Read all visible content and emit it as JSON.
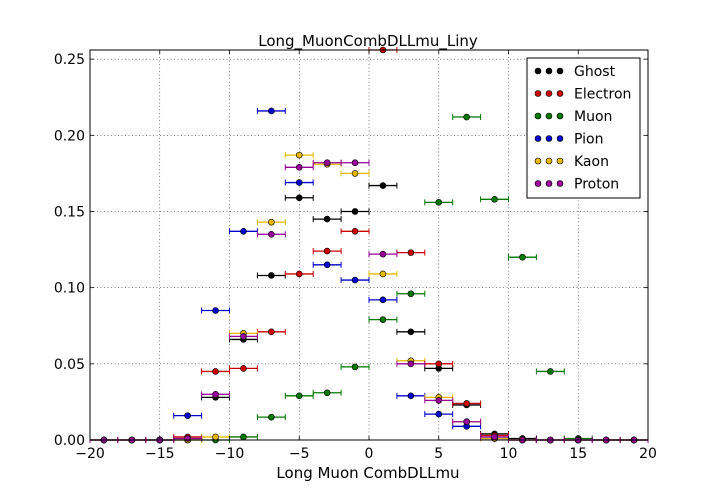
{
  "chart_data": {
    "type": "scatter",
    "title": "Long_MuonCombDLLmu_Liny",
    "xlabel": "Long Muon CombDLLmu",
    "ylabel": "",
    "xlim": [
      -20,
      20
    ],
    "ylim": [
      0,
      0.256
    ],
    "x_ticks": [
      "−20",
      "−15",
      "−10",
      "−5",
      "0",
      "5",
      "10",
      "15",
      "20"
    ],
    "y_ticks": [
      "0.00",
      "0.05",
      "0.10",
      "0.15",
      "0.20",
      "0.25"
    ],
    "grid": true,
    "legend_position": "top-right",
    "bin_half_width": 1,
    "series": [
      {
        "name": "Ghost",
        "color": "#000000",
        "x": [
          -19,
          -17,
          -15,
          -13,
          -11,
          -9,
          -7,
          -5,
          -3,
          -1,
          1,
          3,
          5,
          7,
          9,
          11,
          13,
          15,
          17,
          19
        ],
        "y": [
          0,
          0,
          0,
          0.001,
          0.028,
          0.066,
          0.108,
          0.159,
          0.145,
          0.15,
          0.167,
          0.071,
          0.047,
          0.023,
          0.004,
          0.001,
          0,
          0,
          0,
          0
        ]
      },
      {
        "name": "Electron",
        "color": "#cc0000",
        "x": [
          -19,
          -17,
          -15,
          -13,
          -11,
          -9,
          -7,
          -5,
          -3,
          -1,
          1,
          3,
          5,
          7,
          9,
          11,
          13,
          15,
          17,
          19
        ],
        "y": [
          0,
          0,
          0,
          0.002,
          0.045,
          0.047,
          0.071,
          0.109,
          0.124,
          0.137,
          0.256,
          0.123,
          0.05,
          0.024,
          0.003,
          0,
          0,
          0,
          0,
          0
        ]
      },
      {
        "name": "Muon",
        "color": "#007700",
        "x": [
          -19,
          -17,
          -15,
          -13,
          -11,
          -9,
          -7,
          -5,
          -3,
          -1,
          1,
          3,
          5,
          7,
          9,
          11,
          13,
          15,
          17,
          19
        ],
        "y": [
          0,
          0,
          0,
          0,
          0,
          0.002,
          0.015,
          0.029,
          0.031,
          0.048,
          0.079,
          0.096,
          0.156,
          0.212,
          0.158,
          0.12,
          0.045,
          0.001,
          0,
          0
        ]
      },
      {
        "name": "Pion",
        "color": "#0000cc",
        "x": [
          -19,
          -17,
          -15,
          -13,
          -11,
          -9,
          -7,
          -5,
          -3,
          -1,
          1,
          3,
          5,
          7,
          9,
          11,
          13,
          15,
          17,
          19
        ],
        "y": [
          0,
          0,
          0,
          0.016,
          0.085,
          0.137,
          0.216,
          0.169,
          0.115,
          0.105,
          0.092,
          0.029,
          0.017,
          0.009,
          0.001,
          0,
          0,
          0,
          0,
          0
        ]
      },
      {
        "name": "Kaon",
        "color": "#e6b800",
        "x": [
          -19,
          -17,
          -15,
          -13,
          -11,
          -9,
          -7,
          -5,
          -3,
          -1,
          1,
          3,
          5,
          7,
          9,
          11,
          13,
          15,
          17,
          19
        ],
        "y": [
          0,
          0,
          0,
          0,
          0.002,
          0.07,
          0.143,
          0.187,
          0.181,
          0.175,
          0.109,
          0.052,
          0.028,
          0.012,
          0.001,
          0,
          0,
          0,
          0,
          0
        ]
      },
      {
        "name": "Proton",
        "color": "#990099",
        "x": [
          -19,
          -17,
          -15,
          -13,
          -11,
          -9,
          -7,
          -5,
          -3,
          -1,
          1,
          3,
          5,
          7,
          9,
          11,
          13,
          15,
          17,
          19
        ],
        "y": [
          0,
          0,
          0,
          0.001,
          0.03,
          0.068,
          0.135,
          0.179,
          0.182,
          0.182,
          0.122,
          0.05,
          0.026,
          0.012,
          0.002,
          0,
          0,
          0,
          0,
          0
        ]
      }
    ]
  }
}
